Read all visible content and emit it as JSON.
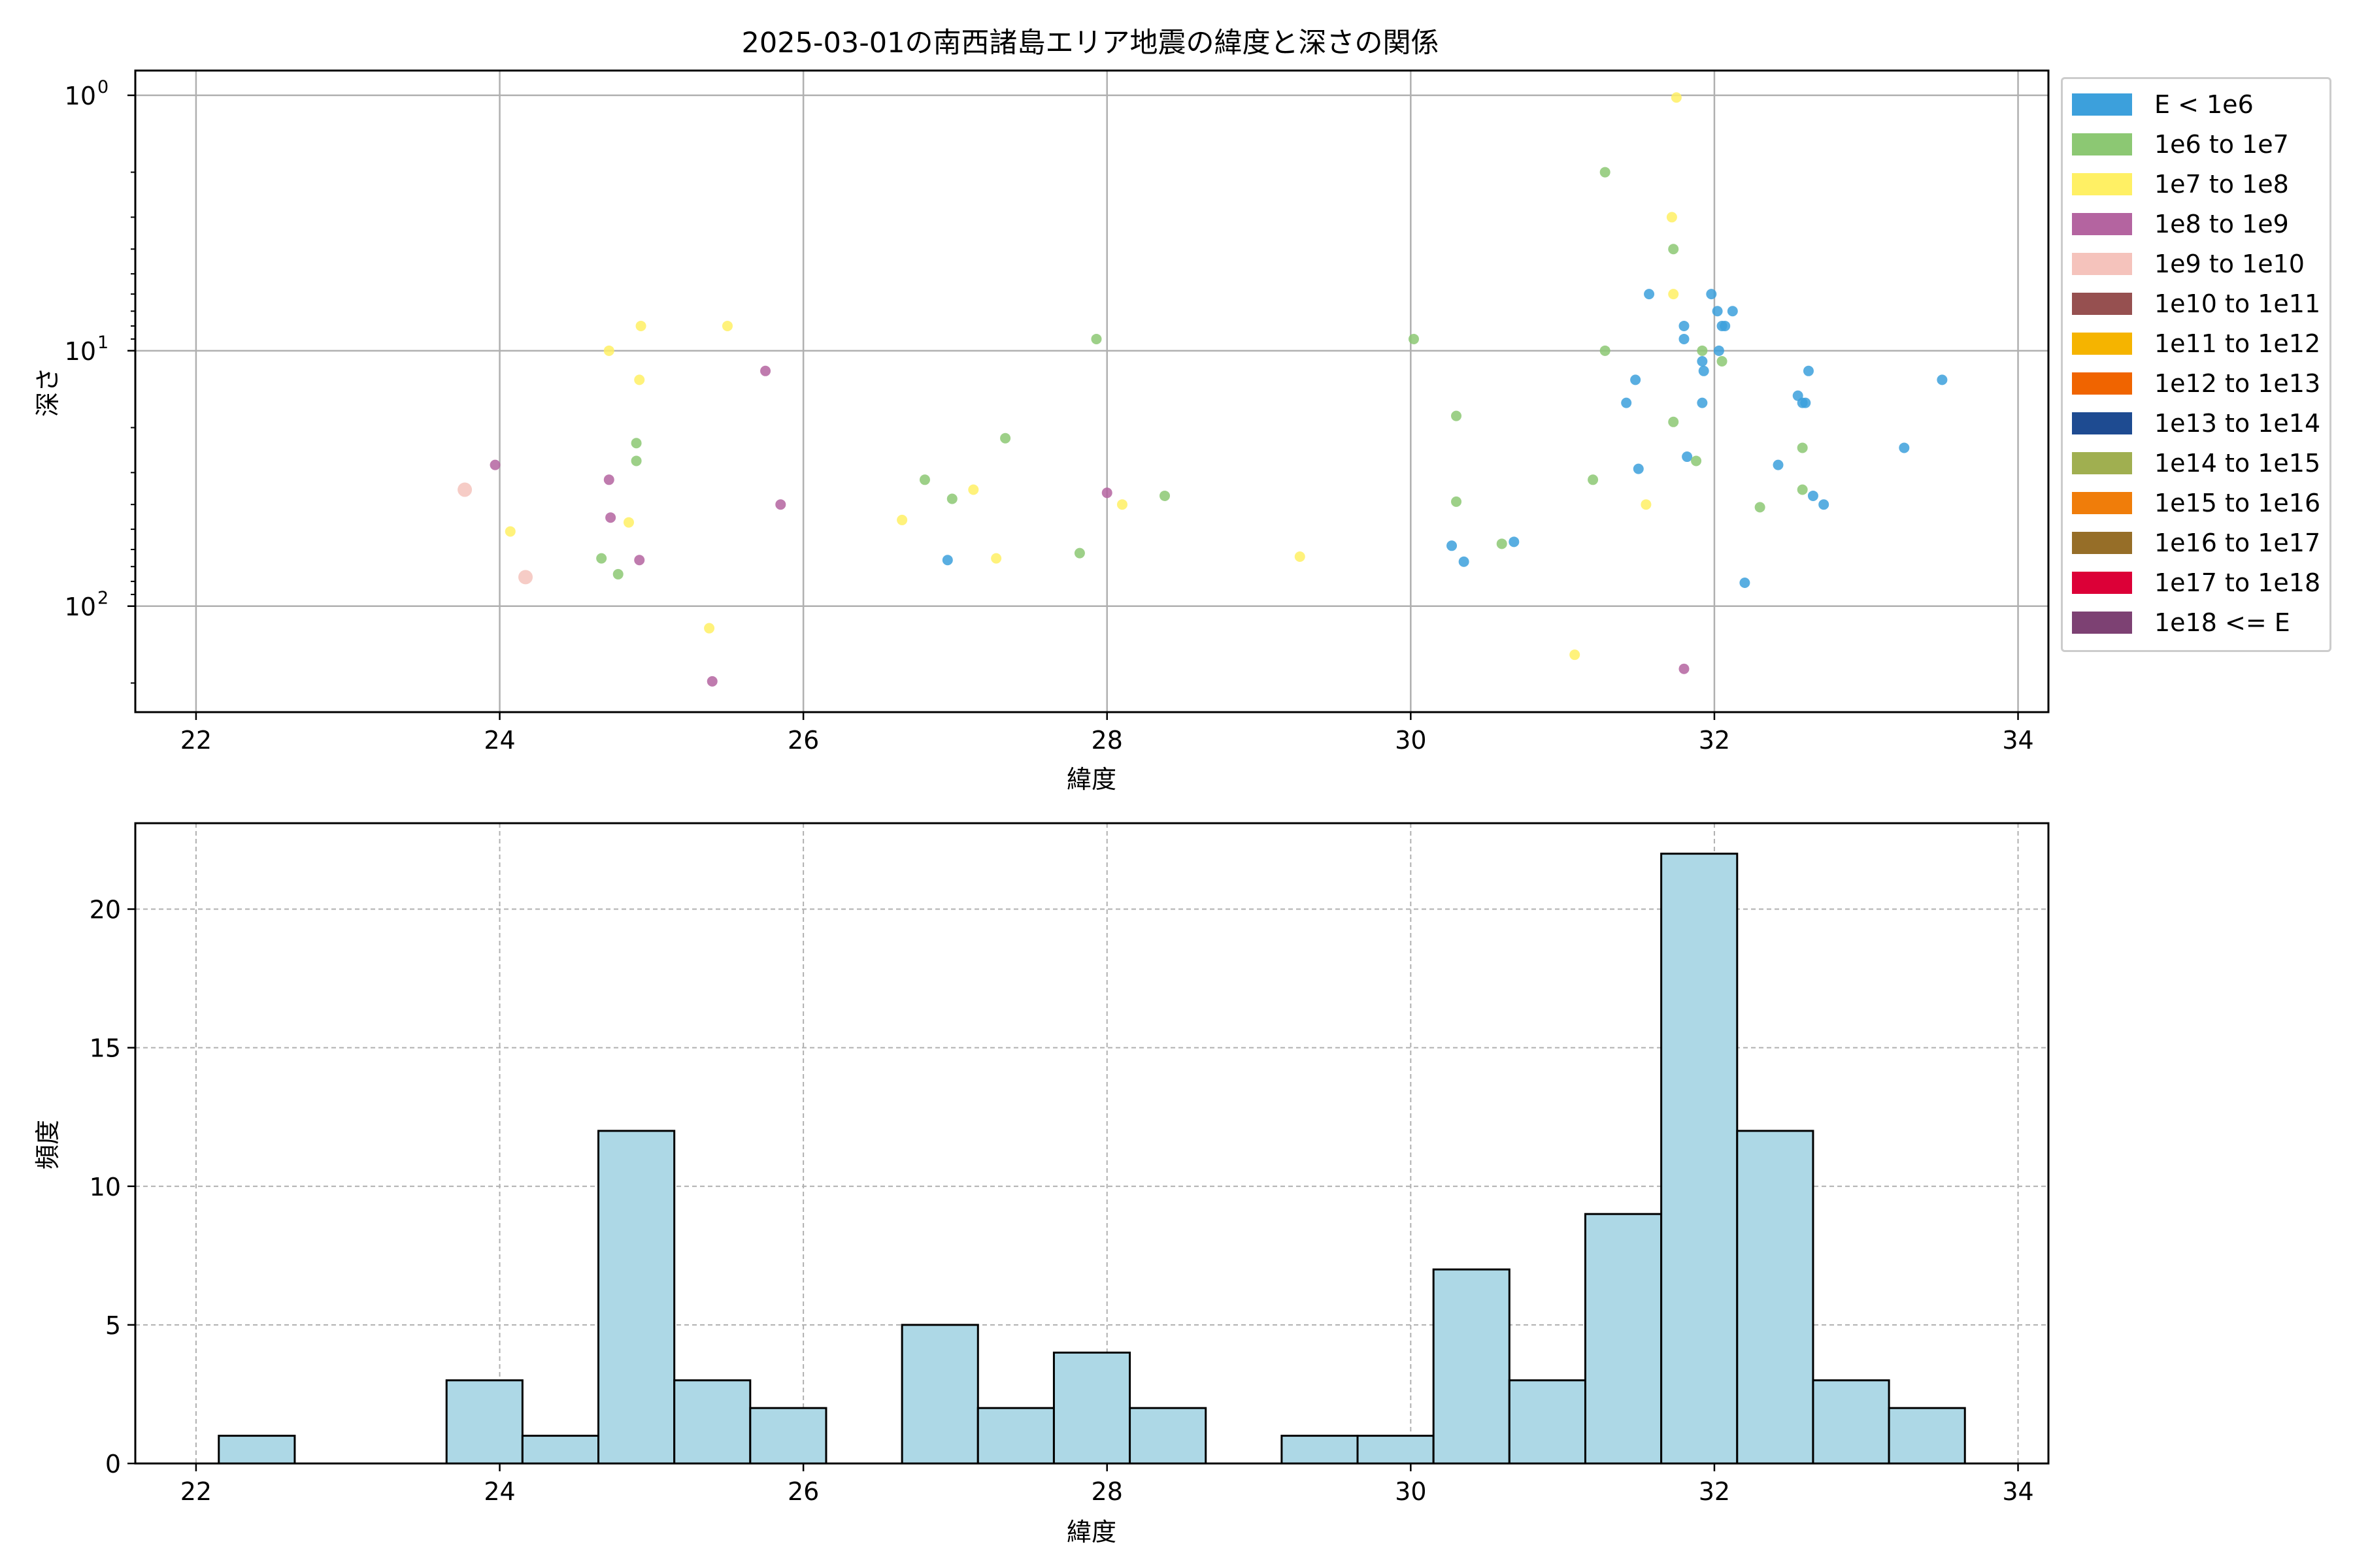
{
  "title": "2025-03-01の南西諸島エリア地震の緯度と深さの関係",
  "chart_data": [
    {
      "type": "scatter",
      "title": "2025-03-01の南西諸島エリア地震の緯度と深さの関係",
      "xlabel": "緯度",
      "ylabel": "深さ",
      "xlim": [
        21.6,
        34.2
      ],
      "ylim": [
        260,
        0.8
      ],
      "yscale": "log",
      "y_inverted": true,
      "grid": true,
      "xticks": [
        "22",
        "24",
        "26",
        "28",
        "30",
        "32",
        "34"
      ],
      "yticks": [
        {
          "value": 1,
          "base": "10",
          "exp": "0"
        },
        {
          "value": 10,
          "base": "10",
          "exp": "1"
        },
        {
          "value": 100,
          "base": "10",
          "exp": "2"
        }
      ],
      "legend_position": "outside-right",
      "legend": [
        {
          "label": "E < 1e6",
          "color": "#3ca0dc"
        },
        {
          "label": "1e6 to 1e7",
          "color": "#8cc873"
        },
        {
          "label": "1e7 to 1e8",
          "color": "#fff064"
        },
        {
          "label": "1e8 to 1e9",
          "color": "#b464a0"
        },
        {
          "label": "1e9 to 1e10",
          "color": "#f5c3bc"
        },
        {
          "label": "1e10 to 1e11",
          "color": "#965050"
        },
        {
          "label": "1e11 to 1e12",
          "color": "#f5b400"
        },
        {
          "label": "1e12 to 1e13",
          "color": "#f06400"
        },
        {
          "label": "1e13 to 1e14",
          "color": "#1e4b91"
        },
        {
          "label": "1e14 to 1e15",
          "color": "#a0af50"
        },
        {
          "label": "1e15 to 1e16",
          "color": "#f07d0a"
        },
        {
          "label": "1e16 to 1e17",
          "color": "#966e28"
        },
        {
          "label": "1e17 to 1e18",
          "color": "#dc0037"
        },
        {
          "label": "1e18 <= E",
          "color": "#7d4173"
        }
      ],
      "series": [
        {
          "name": "E < 1e6",
          "color": "#3ca0dc",
          "points": [
            [
              26.95,
              66
            ],
            [
              30.27,
              58
            ],
            [
              30.35,
              67
            ],
            [
              30.68,
              56
            ],
            [
              31.42,
              16
            ],
            [
              31.48,
              13
            ],
            [
              31.5,
              29
            ],
            [
              31.57,
              6
            ],
            [
              31.8,
              8
            ],
            [
              31.8,
              9
            ],
            [
              31.82,
              26
            ],
            [
              31.92,
              16
            ],
            [
              31.92,
              11
            ],
            [
              31.93,
              12
            ],
            [
              31.98,
              6
            ],
            [
              32.02,
              7
            ],
            [
              32.03,
              10
            ],
            [
              32.05,
              8
            ],
            [
              32.07,
              8
            ],
            [
              32.12,
              7
            ],
            [
              32.2,
              81
            ],
            [
              32.42,
              28
            ],
            [
              32.55,
              15
            ],
            [
              32.58,
              16
            ],
            [
              32.6,
              16
            ],
            [
              32.62,
              12
            ],
            [
              32.65,
              37
            ],
            [
              32.72,
              40
            ],
            [
              33.25,
              24
            ],
            [
              33.5,
              13
            ]
          ]
        },
        {
          "name": "1e6 to 1e7",
          "color": "#8cc873",
          "points": [
            [
              24.67,
              65
            ],
            [
              24.78,
              75
            ],
            [
              24.9,
              23
            ],
            [
              24.9,
              27
            ],
            [
              26.8,
              32
            ],
            [
              26.98,
              38
            ],
            [
              27.33,
              22
            ],
            [
              27.82,
              62
            ],
            [
              27.93,
              9
            ],
            [
              28.38,
              37
            ],
            [
              30.02,
              9
            ],
            [
              30.3,
              18
            ],
            [
              30.3,
              39
            ],
            [
              30.6,
              57
            ],
            [
              31.2,
              32
            ],
            [
              31.28,
              2
            ],
            [
              31.28,
              10
            ],
            [
              31.73,
              4
            ],
            [
              31.73,
              19
            ],
            [
              31.88,
              27
            ],
            [
              31.92,
              10
            ],
            [
              32.05,
              11
            ],
            [
              32.3,
              41
            ],
            [
              32.58,
              24
            ],
            [
              32.58,
              35
            ]
          ]
        },
        {
          "name": "1e7 to 1e8",
          "color": "#fff064",
          "points": [
            [
              24.07,
              51
            ],
            [
              24.72,
              10
            ],
            [
              24.85,
              47
            ],
            [
              24.92,
              13
            ],
            [
              24.93,
              8
            ],
            [
              25.38,
              122
            ],
            [
              25.5,
              8
            ],
            [
              26.65,
              46
            ],
            [
              27.12,
              35
            ],
            [
              27.27,
              65
            ],
            [
              28.1,
              40
            ],
            [
              29.27,
              64
            ],
            [
              31.08,
              155
            ],
            [
              31.55,
              40
            ],
            [
              31.72,
              3
            ],
            [
              31.73,
              6
            ],
            [
              31.75,
              1.02
            ]
          ]
        },
        {
          "name": "1e8 to 1e9",
          "color": "#b464a0",
          "points": [
            [
              23.97,
              28
            ],
            [
              24.72,
              32
            ],
            [
              24.73,
              45
            ],
            [
              24.92,
              66
            ],
            [
              25.4,
              197
            ],
            [
              25.75,
              12
            ],
            [
              25.85,
              40
            ],
            [
              28.0,
              36
            ],
            [
              31.8,
              176
            ]
          ]
        },
        {
          "name": "1e9 to 1e10",
          "color": "#f5c3bc",
          "points": [
            [
              23.77,
              35
            ],
            [
              24.17,
              77
            ]
          ]
        }
      ]
    },
    {
      "type": "bar",
      "subtype": "histogram",
      "xlabel": "緯度",
      "ylabel": "頻度",
      "xlim": [
        21.6,
        34.2
      ],
      "ylim": [
        0,
        23.1
      ],
      "grid": true,
      "xticks": [
        "22",
        "24",
        "26",
        "28",
        "30",
        "32",
        "34"
      ],
      "yticks": [
        "0",
        "5",
        "10",
        "15",
        "20"
      ],
      "bin_edges": [
        22.15,
        22.65,
        23.15,
        23.65,
        24.15,
        24.65,
        25.15,
        25.65,
        26.15,
        26.65,
        27.15,
        27.65,
        28.15,
        28.65,
        29.15,
        29.65,
        30.15,
        30.65,
        31.15,
        31.65,
        32.15,
        32.65,
        33.15,
        33.65
      ],
      "values": [
        1,
        0,
        0,
        3,
        1,
        12,
        3,
        2,
        0,
        5,
        2,
        4,
        2,
        0,
        1,
        1,
        7,
        3,
        9,
        22,
        12,
        3,
        2
      ],
      "bar_color": "#add8e6",
      "edge_color": "#000000"
    }
  ]
}
